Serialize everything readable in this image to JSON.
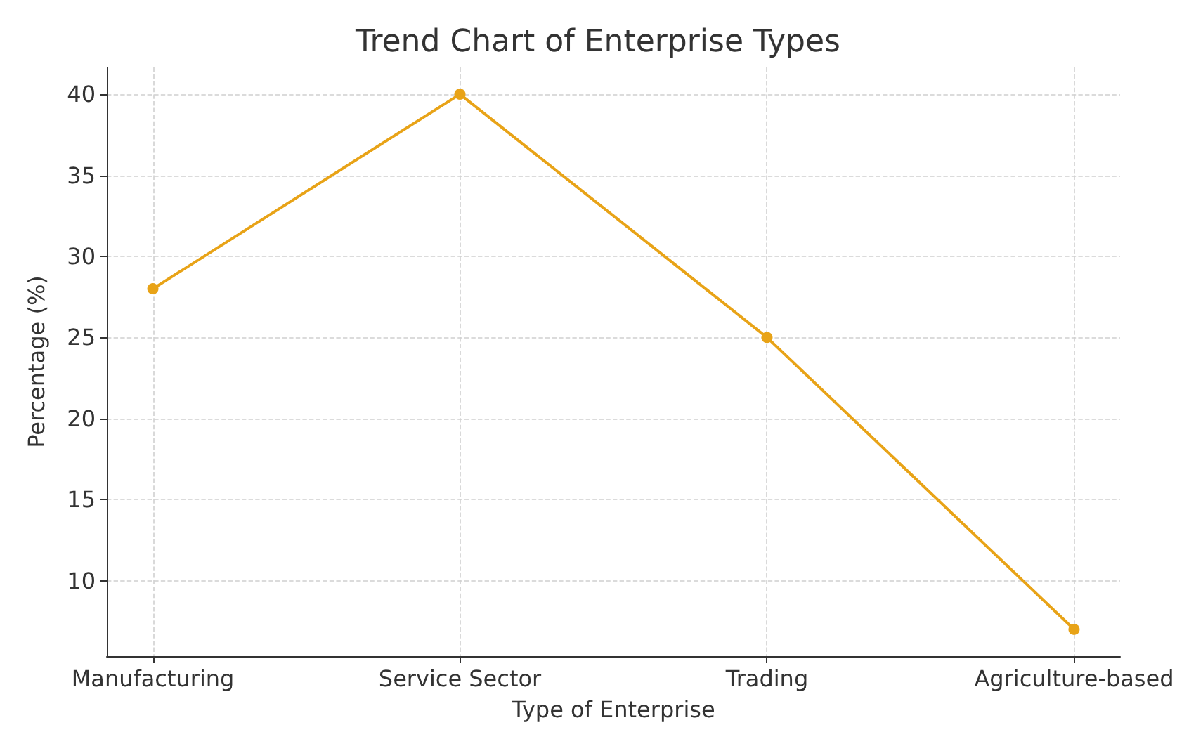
{
  "chart_data": {
    "type": "line",
    "title": "Trend Chart of Enterprise Types",
    "xlabel": "Type of Enterprise",
    "ylabel": "Percentage (%)",
    "categories": [
      "Manufacturing",
      "Service Sector",
      "Trading",
      "Agriculture-based"
    ],
    "series": [
      {
        "color": "#e8a317",
        "values": [
          28,
          40,
          25,
          7
        ]
      }
    ],
    "ylim": [
      5.35,
      41.65
    ],
    "yticks": [
      10,
      15,
      20,
      25,
      30,
      35,
      40
    ],
    "grid": true,
    "marker": "circle",
    "line_style": "solid"
  }
}
